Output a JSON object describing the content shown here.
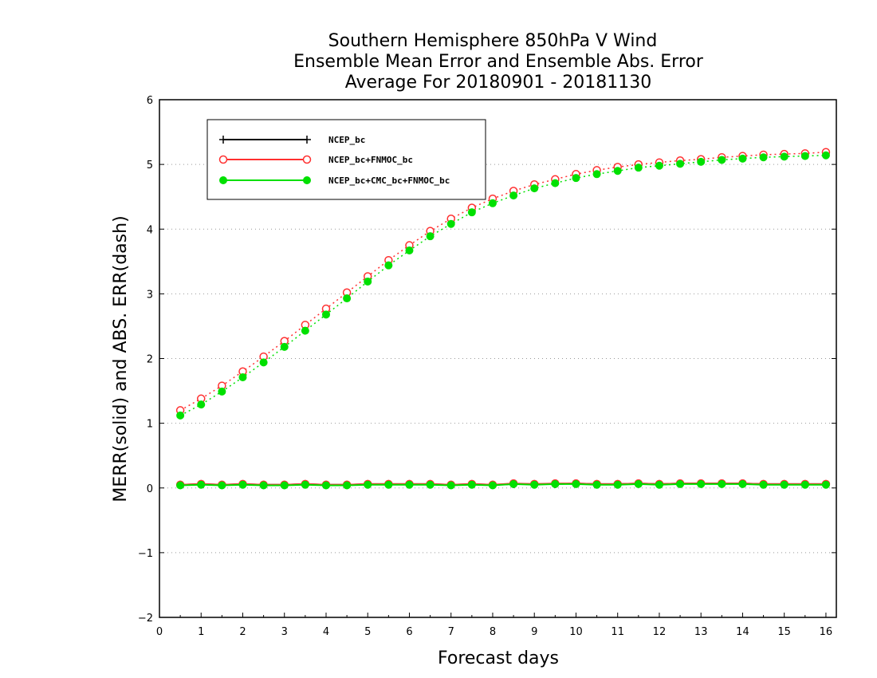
{
  "chart_data": {
    "type": "line",
    "title": [
      "Southern Hemisphere 850hPa V Wind",
      "Ensemble Mean Error and Ensemble Abs. Error",
      "Average For 20180901 - 20181130"
    ],
    "xlabel": "Forecast days",
    "ylabel": "MERR(solid) and ABS. ERR(dash)",
    "xlim": [
      0,
      16.25
    ],
    "ylim": [
      -2,
      6
    ],
    "xticks": [
      0,
      1,
      2,
      3,
      4,
      5,
      6,
      7,
      8,
      9,
      10,
      11,
      12,
      13,
      14,
      15,
      16
    ],
    "yticks": [
      -2,
      -1,
      0,
      1,
      2,
      3,
      4,
      5,
      6
    ],
    "grid": "dotted horizontal",
    "legend_position": "top-left",
    "x": [
      0.5,
      1,
      1.5,
      2,
      2.5,
      3,
      3.5,
      4,
      4.5,
      5,
      5.5,
      6,
      6.5,
      7,
      7.5,
      8,
      8.5,
      9,
      9.5,
      10,
      10.5,
      11,
      11.5,
      12,
      12.5,
      13,
      13.5,
      14,
      14.5,
      15,
      15.5,
      16
    ],
    "series": [
      {
        "name": "NCEP_bc",
        "color": "#000000",
        "marker": "plus",
        "merr": [
          0.05,
          0.06,
          0.05,
          0.06,
          0.05,
          0.05,
          0.06,
          0.05,
          0.05,
          0.06,
          0.06,
          0.06,
          0.06,
          0.05,
          0.06,
          0.05,
          0.06,
          0.06,
          0.06,
          0.07,
          0.06,
          0.06,
          0.07,
          0.06,
          0.07,
          0.07,
          0.07,
          0.07,
          0.06,
          0.06,
          0.06,
          0.06
        ],
        "abs_err": []
      },
      {
        "name": "NCEP_bc+FNMOC_bc",
        "color": "#ff3030",
        "marker": "open-circle",
        "merr": [
          0.05,
          0.06,
          0.05,
          0.06,
          0.05,
          0.05,
          0.06,
          0.05,
          0.05,
          0.06,
          0.06,
          0.06,
          0.06,
          0.05,
          0.06,
          0.05,
          0.07,
          0.06,
          0.07,
          0.07,
          0.06,
          0.06,
          0.07,
          0.06,
          0.07,
          0.07,
          0.07,
          0.07,
          0.06,
          0.06,
          0.06,
          0.06
        ],
        "abs_err": [
          1.2,
          1.38,
          1.58,
          1.8,
          2.03,
          2.27,
          2.52,
          2.77,
          3.02,
          3.27,
          3.52,
          3.75,
          3.97,
          4.16,
          4.33,
          4.47,
          4.59,
          4.69,
          4.77,
          4.85,
          4.91,
          4.96,
          5.0,
          5.03,
          5.06,
          5.08,
          5.11,
          5.13,
          5.15,
          5.16,
          5.17,
          5.19
        ]
      },
      {
        "name": "NCEP_bc+CMC_bc+FNMOC_bc",
        "color": "#00e000",
        "marker": "filled-circle",
        "merr": [
          0.04,
          0.05,
          0.04,
          0.05,
          0.04,
          0.04,
          0.05,
          0.04,
          0.04,
          0.05,
          0.05,
          0.05,
          0.05,
          0.04,
          0.05,
          0.04,
          0.06,
          0.05,
          0.06,
          0.06,
          0.05,
          0.05,
          0.06,
          0.05,
          0.06,
          0.06,
          0.06,
          0.06,
          0.05,
          0.05,
          0.05,
          0.05
        ],
        "abs_err": [
          1.12,
          1.29,
          1.49,
          1.71,
          1.94,
          2.18,
          2.43,
          2.68,
          2.93,
          3.19,
          3.44,
          3.67,
          3.89,
          4.08,
          4.26,
          4.4,
          4.52,
          4.63,
          4.71,
          4.79,
          4.85,
          4.9,
          4.95,
          4.98,
          5.01,
          5.04,
          5.07,
          5.09,
          5.11,
          5.12,
          5.13,
          5.14
        ]
      }
    ]
  }
}
